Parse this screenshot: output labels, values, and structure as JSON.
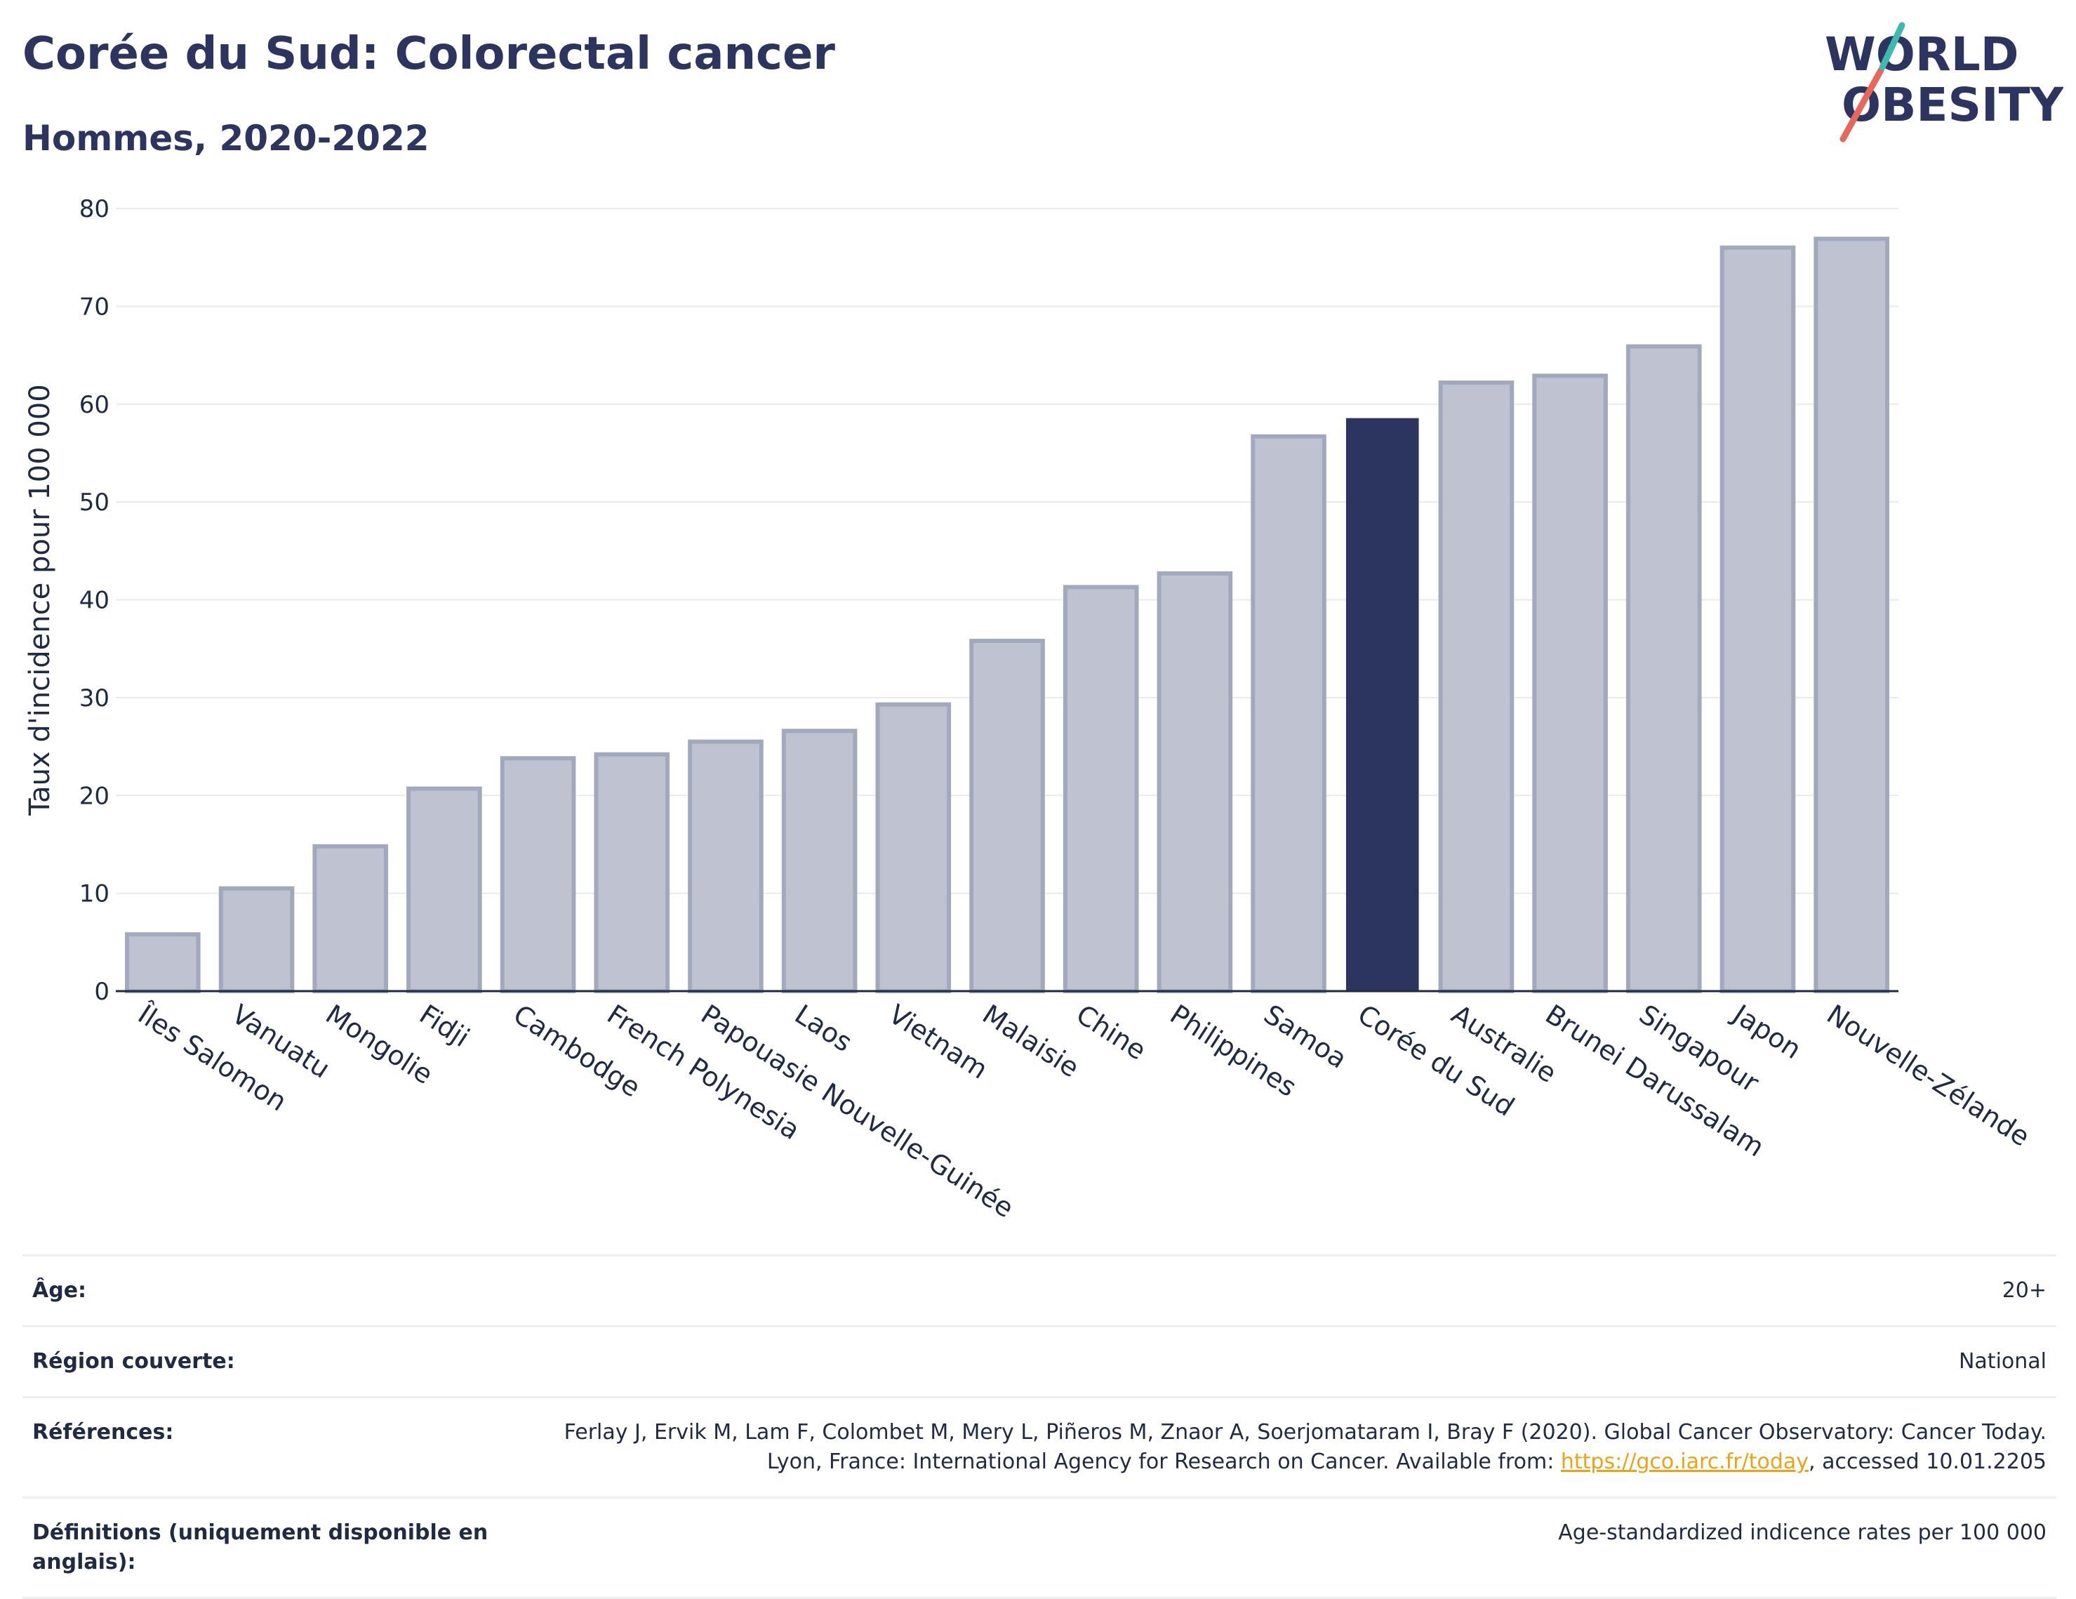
{
  "header": {
    "title": "Corée du Sud: Colorectal cancer",
    "subtitle": "Hommes, 2020-2022",
    "logo_line1": "WORLD",
    "logo_line2": "OBESITY"
  },
  "chart_data": {
    "type": "bar",
    "title": "Corée du Sud: Colorectal cancer",
    "subtitle": "Hommes, 2020-2022",
    "xlabel": "",
    "ylabel": "Taux d'incidence pour 100 000",
    "ylim": [
      0,
      80
    ],
    "yticks": [
      0,
      10,
      20,
      30,
      40,
      50,
      60,
      70,
      80
    ],
    "grid": true,
    "categories": [
      "Îles Salomon",
      "Vanuatu",
      "Mongolie",
      "Fidji",
      "Cambodge",
      "French Polynesia",
      "Papouasie Nouvelle-Guinée",
      "Laos",
      "Vietnam",
      "Malaisie",
      "Chine",
      "Philippines",
      "Samoa",
      "Corée du Sud",
      "Australie",
      "Brunei Darussalam",
      "Singapour",
      "Japon",
      "Nouvelle-Zélande"
    ],
    "values": [
      5.8,
      10.5,
      14.8,
      20.7,
      23.8,
      24.2,
      25.5,
      26.6,
      29.3,
      35.8,
      41.3,
      42.7,
      56.7,
      58.5,
      62.2,
      62.9,
      65.9,
      76.0,
      76.9
    ],
    "highlight": "Corée du Sud",
    "colors": {
      "bar": "#bfc3d1",
      "bar_border": "#a3a9bd",
      "highlight": "#2b3560",
      "grid": "#e8eaee",
      "axis": "#1f2a44"
    }
  },
  "metadata": {
    "rows": [
      {
        "key": "Âge:",
        "value": "20+"
      },
      {
        "key": "Région couverte:",
        "value": "National"
      },
      {
        "key": "Références:",
        "value_before": "Ferlay J, Ervik M, Lam F, Colombet M, Mery L, Piñeros M, Znaor A, Soerjomataram I, Bray F (2020). Global Cancer Observatory: Cancer Today. Lyon, France: International Agency for Research on Cancer. Available from: ",
        "link": "https://gco.iarc.fr/today",
        "value_after": ", accessed 10.01.2205"
      },
      {
        "key": "Définitions (uniquement disponible en anglais):",
        "value": "Age-standardized indicence rates per 100 000"
      }
    ]
  }
}
